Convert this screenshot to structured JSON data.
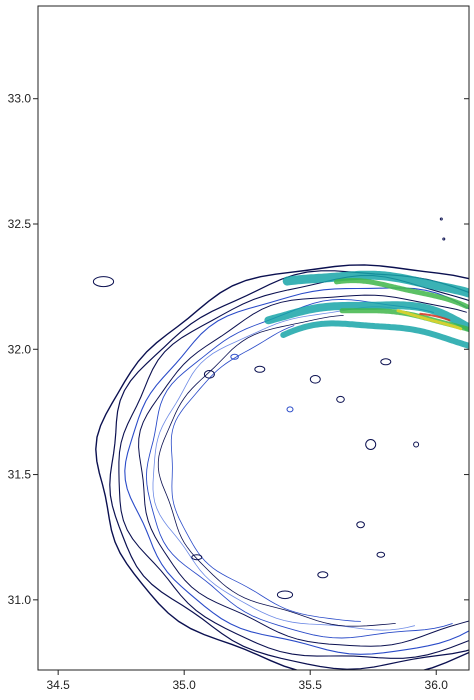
{
  "chart_data": {
    "type": "contour",
    "title": "",
    "xlabel": "",
    "ylabel": "",
    "xlim": [
      34.42,
      36.13
    ],
    "ylim": [
      30.72,
      33.37
    ],
    "x_ticks": [
      {
        "value": 34.5,
        "label": "34.5"
      },
      {
        "value": 35.0,
        "label": "35.0"
      },
      {
        "value": 35.5,
        "label": "35.5"
      },
      {
        "value": 36.0,
        "label": "36.0"
      }
    ],
    "y_ticks": [
      {
        "value": 31.0,
        "label": "31.0"
      },
      {
        "value": 31.5,
        "label": "31.5"
      },
      {
        "value": 32.0,
        "label": "32.0"
      },
      {
        "value": 32.5,
        "label": "32.5"
      },
      {
        "value": 33.0,
        "label": "33.0"
      }
    ],
    "grid": false,
    "colors": {
      "outer_contour": "#0b1050",
      "mid_contour": "#2a4bc8",
      "low_contour": "#6e8be6",
      "teal": "#17a4a8",
      "green": "#3fb64a",
      "yellow": "#e8d428",
      "red": "#d8301e"
    },
    "arcs": [
      {
        "cx": 35.7,
        "cy": 31.52,
        "rx": 1.04,
        "ry": 0.82,
        "start_deg": 40,
        "end_deg": 335,
        "color": "outer_contour",
        "width": 1.4
      },
      {
        "cx": 35.7,
        "cy": 31.52,
        "rx": 1.0,
        "ry": 0.79,
        "start_deg": 50,
        "end_deg": 325,
        "color": "outer_contour",
        "width": 1.2
      },
      {
        "cx": 35.7,
        "cy": 31.52,
        "rx": 0.96,
        "ry": 0.76,
        "start_deg": 55,
        "end_deg": 318,
        "color": "outer_contour",
        "width": 1.1
      },
      {
        "cx": 35.7,
        "cy": 31.52,
        "rx": 0.92,
        "ry": 0.73,
        "start_deg": 60,
        "end_deg": 312,
        "color": "mid_contour",
        "width": 1.1
      },
      {
        "cx": 35.7,
        "cy": 31.52,
        "rx": 0.88,
        "ry": 0.7,
        "start_deg": 62,
        "end_deg": 305,
        "color": "outer_contour",
        "width": 1.0
      },
      {
        "cx": 35.7,
        "cy": 31.52,
        "rx": 0.85,
        "ry": 0.67,
        "start_deg": 70,
        "end_deg": 295,
        "color": "mid_contour",
        "width": 0.9
      },
      {
        "cx": 35.7,
        "cy": 31.52,
        "rx": 0.82,
        "ry": 0.64,
        "start_deg": 80,
        "end_deg": 285,
        "color": "low_contour",
        "width": 0.8
      },
      {
        "cx": 35.7,
        "cy": 31.52,
        "rx": 0.79,
        "ry": 0.62,
        "start_deg": 95,
        "end_deg": 280,
        "color": "outer_contour",
        "width": 0.8
      },
      {
        "cx": 35.7,
        "cy": 31.52,
        "rx": 0.76,
        "ry": 0.6,
        "start_deg": 110,
        "end_deg": 270,
        "color": "mid_contour",
        "width": 0.8
      }
    ],
    "bands": [
      {
        "cx": 35.7,
        "cy": 31.52,
        "rx": 0.93,
        "ry": 0.78,
        "start_deg": 50,
        "end_deg": 108,
        "color": "teal",
        "width": 9
      },
      {
        "cx": 35.7,
        "cy": 31.52,
        "rx": 0.9,
        "ry": 0.74,
        "start_deg": 62,
        "end_deg": 96,
        "color": "green",
        "width": 5
      },
      {
        "cx": 35.7,
        "cy": 31.52,
        "rx": 0.87,
        "ry": 0.66,
        "start_deg": 50,
        "end_deg": 115,
        "color": "teal",
        "width": 8
      },
      {
        "cx": 35.7,
        "cy": 31.52,
        "rx": 0.85,
        "ry": 0.64,
        "start_deg": 58,
        "end_deg": 95,
        "color": "green",
        "width": 5
      },
      {
        "cx": 35.7,
        "cy": 31.52,
        "rx": 0.85,
        "ry": 0.64,
        "start_deg": 62,
        "end_deg": 80,
        "color": "yellow",
        "width": 3
      },
      {
        "cx": 35.7,
        "cy": 31.52,
        "rx": 0.85,
        "ry": 0.64,
        "start_deg": 66,
        "end_deg": 74,
        "color": "red",
        "width": 2
      },
      {
        "cx": 35.7,
        "cy": 31.52,
        "rx": 0.82,
        "ry": 0.58,
        "start_deg": 55,
        "end_deg": 112,
        "color": "teal",
        "width": 6
      }
    ],
    "islands": [
      {
        "x": 34.68,
        "y": 32.27,
        "rx": 0.04,
        "ry": 0.02,
        "color": "outer_contour"
      },
      {
        "x": 35.4,
        "y": 31.02,
        "rx": 0.03,
        "ry": 0.015,
        "color": "outer_contour"
      },
      {
        "x": 35.74,
        "y": 31.62,
        "rx": 0.02,
        "ry": 0.02,
        "color": "outer_contour"
      },
      {
        "x": 35.52,
        "y": 31.88,
        "rx": 0.02,
        "ry": 0.015,
        "color": "outer_contour"
      },
      {
        "x": 35.62,
        "y": 31.8,
        "rx": 0.015,
        "ry": 0.012,
        "color": "outer_contour"
      },
      {
        "x": 35.3,
        "y": 31.92,
        "rx": 0.02,
        "ry": 0.012,
        "color": "outer_contour"
      },
      {
        "x": 35.1,
        "y": 31.9,
        "rx": 0.02,
        "ry": 0.015,
        "color": "outer_contour"
      },
      {
        "x": 35.8,
        "y": 31.95,
        "rx": 0.02,
        "ry": 0.012,
        "color": "outer_contour"
      },
      {
        "x": 35.7,
        "y": 31.3,
        "rx": 0.015,
        "ry": 0.012,
        "color": "outer_contour"
      },
      {
        "x": 35.78,
        "y": 31.18,
        "rx": 0.015,
        "ry": 0.01,
        "color": "outer_contour"
      },
      {
        "x": 35.05,
        "y": 31.17,
        "rx": 0.02,
        "ry": 0.01,
        "color": "outer_contour"
      },
      {
        "x": 35.55,
        "y": 31.1,
        "rx": 0.02,
        "ry": 0.012,
        "color": "outer_contour"
      },
      {
        "x": 35.42,
        "y": 31.76,
        "rx": 0.012,
        "ry": 0.01,
        "color": "mid_contour"
      },
      {
        "x": 35.2,
        "y": 31.97,
        "rx": 0.015,
        "ry": 0.01,
        "color": "mid_contour"
      },
      {
        "x": 35.92,
        "y": 31.62,
        "rx": 0.01,
        "ry": 0.01,
        "color": "outer_contour"
      },
      {
        "x": 36.02,
        "y": 32.52,
        "rx": 0.004,
        "ry": 0.004,
        "color": "outer_contour"
      },
      {
        "x": 36.03,
        "y": 32.44,
        "rx": 0.004,
        "ry": 0.004,
        "color": "outer_contour"
      }
    ]
  }
}
